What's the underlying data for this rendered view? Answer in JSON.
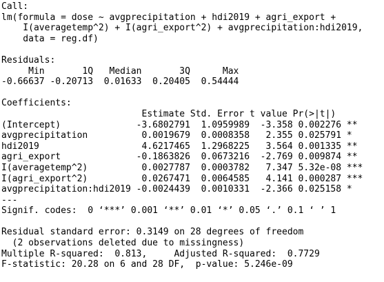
{
  "call": {
    "label": "Call:",
    "lines": [
      "lm(formula = dose ~ avgprecipitation + hdi2019 + agri_export +",
      "    I(averagetemp^2) + I(agri_export^2) + avgprecipitation:hdi2019,",
      "    data = reg.df)"
    ]
  },
  "residuals": {
    "label": "Residuals:",
    "header": "     Min       1Q   Median       3Q      Max",
    "values": "-0.66637 -0.20713  0.01633  0.20405  0.54444"
  },
  "coefficients": {
    "label": "Coefficients:",
    "header": "                          Estimate Std. Error t value Pr(>|t|)",
    "rows": [
      "(Intercept)              -3.6802791  1.0959989  -3.358 0.002276 **",
      "avgprecipitation          0.0019679  0.0008358   2.355 0.025791 *",
      "hdi2019                   4.6217465  1.2968225   3.564 0.001335 **",
      "agri_export              -0.1863826  0.0673216  -2.769 0.009874 **",
      "I(averagetemp^2)          0.0027787  0.0003782   7.347 5.32e-08 ***",
      "I(agri_export^2)          0.0267471  0.0064585   4.141 0.000287 ***",
      "avgprecipitation:hdi2019 -0.0024439  0.0010331  -2.366 0.025158 *"
    ],
    "separator": "---",
    "signif": "Signif. codes:  0 ‘***’ 0.001 ‘**’ 0.01 ‘*’ 0.05 ‘.’ 0.1 ‘ ’ 1"
  },
  "summary": [
    "Residual standard error: 0.3149 on 28 degrees of freedom",
    "  (2 observations deleted due to missingness)",
    "Multiple R-squared:  0.813,     Adjusted R-squared:  0.7729",
    "F-statistic: 20.28 on 6 and 28 DF,  p-value: 5.246e-09"
  ]
}
